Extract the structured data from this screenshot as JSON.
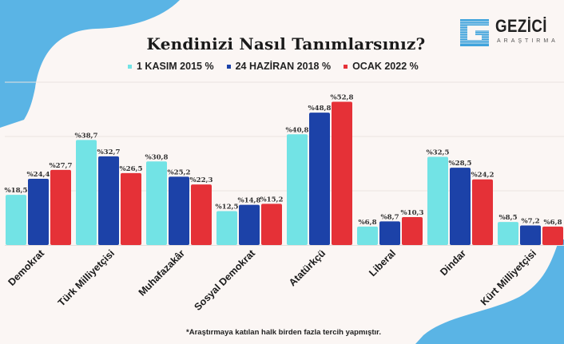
{
  "header": {
    "title": "Kendinizi Nasıl Tanımlarsınız?",
    "logo": {
      "name": "GEZİCİ",
      "subtitle": "ARAŞTIRMA",
      "icon": "g-letter-icon"
    }
  },
  "footnote": "*Araştırmaya katılan halk birden fazla tercih yapmıştır.",
  "colors": {
    "accent_blob": "#5ab4e5",
    "background": "#fbf6f4"
  },
  "chart_data": {
    "type": "bar",
    "title": "Kendinizi Nasıl Tanımlarsınız?",
    "xlabel": "",
    "ylabel": "",
    "ylim": [
      0,
      60
    ],
    "grid": true,
    "legend_position": "top-center",
    "value_prefix": "%",
    "categories": [
      "Demokrat",
      "Türk Milliyetçisi",
      "Muhafazakâr",
      "Sosyal Demokrat",
      "Atatürkçü",
      "Liberal",
      "Dindar",
      "Kürt Milliyetçisi"
    ],
    "series": [
      {
        "name": "1 KASIM 2015 %",
        "color": "#72e3e5",
        "values": [
          18.5,
          38.7,
          30.8,
          12.5,
          40.8,
          6.8,
          32.5,
          8.5
        ],
        "labels": [
          "%18,5",
          "%38,7",
          "%30,8",
          "%12,5",
          "%40,8",
          "%6,8",
          "%32,5",
          "%8,5"
        ]
      },
      {
        "name": "24 HAZİRAN 2018 %",
        "color": "#1c42a8",
        "values": [
          24.4,
          32.7,
          25.2,
          14.8,
          48.8,
          8.7,
          28.5,
          7.2
        ],
        "labels": [
          "%24,4",
          "%32,7",
          "%25,2",
          "%14,8",
          "%48,8",
          "%8,7",
          "%28,5",
          "%7,2"
        ]
      },
      {
        "name": "OCAK 2022 %",
        "color": "#e53137",
        "values": [
          27.7,
          26.5,
          22.3,
          15.2,
          52.8,
          10.3,
          24.2,
          6.8
        ],
        "labels": [
          "%27,7",
          "%26,5",
          "%22,3",
          "%15,2",
          "%52,8",
          "%10,3",
          "%24,2",
          "%6,8"
        ]
      }
    ]
  }
}
